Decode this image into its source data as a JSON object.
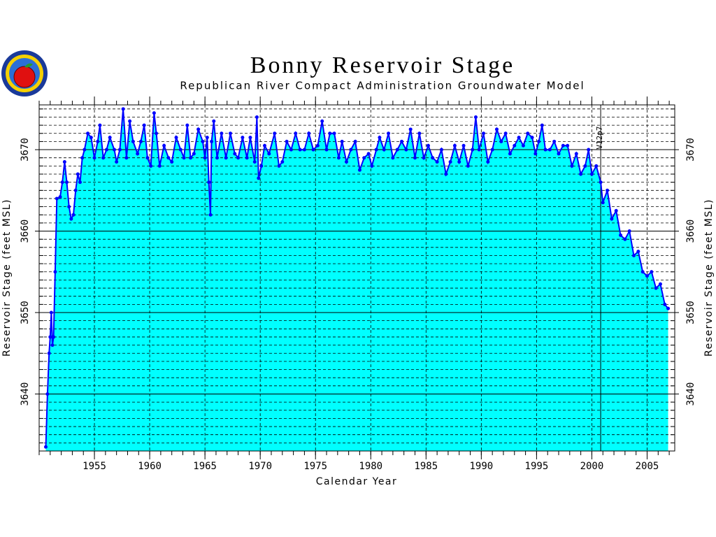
{
  "chart_data": {
    "type": "area-line",
    "title": "Bonny Reservoir Stage",
    "subtitle": "Republican River Compact Administration Groundwater Model",
    "xlabel": "Calendar Year",
    "ylabel": "Reservoir Stage (feet MSL)",
    "xlim": [
      1950,
      2007.5
    ],
    "ylim": [
      3633,
      3675.5
    ],
    "xticks": [
      1955,
      1960,
      1965,
      1970,
      1975,
      1980,
      1985,
      1990,
      1995,
      2000,
      2005
    ],
    "yticks": [
      3640,
      3650,
      3660,
      3670
    ],
    "grid": true,
    "color": "#0000ff",
    "fill_color": "#00ffff",
    "annotation": {
      "x": 2000.8,
      "text": "V12p7"
    },
    "x": [
      1950.6,
      1950.75,
      1950.9,
      1951.0,
      1951.1,
      1951.2,
      1951.3,
      1951.45,
      1951.6,
      1951.9,
      1952.1,
      1952.3,
      1952.5,
      1952.7,
      1952.9,
      1953.1,
      1953.3,
      1953.5,
      1953.7,
      1953.9,
      1954.1,
      1954.4,
      1954.7,
      1955.0,
      1955.3,
      1955.5,
      1955.8,
      1956.1,
      1956.4,
      1956.8,
      1957.0,
      1957.3,
      1957.6,
      1957.9,
      1958.2,
      1958.5,
      1958.9,
      1959.2,
      1959.5,
      1959.8,
      1960.1,
      1960.4,
      1960.6,
      1960.9,
      1961.3,
      1961.7,
      1962.0,
      1962.4,
      1962.8,
      1963.1,
      1963.4,
      1963.7,
      1964.0,
      1964.4,
      1964.8,
      1965.0,
      1965.2,
      1965.35,
      1965.5,
      1965.6,
      1965.8,
      1966.1,
      1966.5,
      1966.9,
      1967.3,
      1967.7,
      1968.0,
      1968.4,
      1968.8,
      1969.1,
      1969.5,
      1969.7,
      1969.85,
      1970.1,
      1970.4,
      1970.8,
      1971.3,
      1971.7,
      1972.0,
      1972.4,
      1972.8,
      1973.2,
      1973.6,
      1974.0,
      1974.4,
      1974.8,
      1975.2,
      1975.6,
      1976.0,
      1976.3,
      1976.7,
      1977.1,
      1977.4,
      1977.8,
      1978.2,
      1978.6,
      1979.0,
      1979.4,
      1979.8,
      1980.1,
      1980.5,
      1980.8,
      1981.2,
      1981.6,
      1982.0,
      1982.4,
      1982.8,
      1983.2,
      1983.6,
      1984.0,
      1984.4,
      1984.8,
      1985.2,
      1985.6,
      1986.0,
      1986.4,
      1986.8,
      1987.2,
      1987.6,
      1988.0,
      1988.4,
      1988.8,
      1989.2,
      1989.5,
      1989.8,
      1990.2,
      1990.6,
      1991.0,
      1991.4,
      1991.8,
      1992.2,
      1992.6,
      1993.0,
      1993.4,
      1993.8,
      1994.2,
      1994.6,
      1994.9,
      1995.2,
      1995.5,
      1995.8,
      1996.2,
      1996.6,
      1997.0,
      1997.4,
      1997.8,
      1998.2,
      1998.6,
      1999.0,
      1999.4,
      1999.7,
      2000.0,
      2000.4,
      2000.8,
      2001.0,
      2001.4,
      2001.8,
      2002.2,
      2002.6,
      2003.0,
      2003.4,
      2003.8,
      2004.2,
      2004.6,
      2005.0,
      2005.4,
      2005.8,
      2006.2,
      2006.6,
      2006.9
    ],
    "values": [
      3633.5,
      3640,
      3645,
      3647,
      3650,
      3646,
      3647,
      3655,
      3664,
      3664.2,
      3666,
      3668.5,
      3666,
      3663,
      3661.5,
      3662,
      3665,
      3667,
      3666,
      3669,
      3670,
      3672,
      3671.5,
      3669,
      3671,
      3673,
      3669,
      3670,
      3671.5,
      3670,
      3668.5,
      3670,
      3675,
      3669,
      3673.5,
      3671,
      3669.5,
      3671,
      3673,
      3669,
      3668,
      3674.5,
      3672,
      3668,
      3670.5,
      3669,
      3668.5,
      3671.5,
      3670,
      3669,
      3673,
      3669,
      3669.5,
      3672.5,
      3671,
      3669,
      3671.5,
      3666,
      3662,
      3671,
      3673.5,
      3669,
      3672,
      3669,
      3672,
      3669.5,
      3669,
      3671.5,
      3669,
      3671.5,
      3668.5,
      3674,
      3666.5,
      3668,
      3670.5,
      3669.5,
      3672,
      3668,
      3668.5,
      3671,
      3670,
      3672,
      3670,
      3670,
      3672,
      3670,
      3670.5,
      3673.5,
      3670,
      3672,
      3672,
      3669,
      3671,
      3668.5,
      3670,
      3671,
      3667.5,
      3669,
      3669.5,
      3668,
      3670,
      3671.5,
      3670,
      3672,
      3669,
      3670,
      3671,
      3670,
      3672.5,
      3669,
      3672,
      3669,
      3670.5,
      3669,
      3668.5,
      3670,
      3667,
      3668.5,
      3670.5,
      3668.5,
      3670.5,
      3668,
      3670,
      3674,
      3670,
      3672,
      3668.5,
      3670,
      3672.5,
      3671,
      3672,
      3669.5,
      3670.5,
      3671.5,
      3670.5,
      3672,
      3671.5,
      3669.5,
      3671,
      3673,
      3670,
      3670,
      3671,
      3669.5,
      3670.5,
      3670.5,
      3668,
      3669.5,
      3667,
      3668,
      3670,
      3667,
      3668,
      3666,
      3663.5,
      3665,
      3661.5,
      3662.5,
      3659.5,
      3659,
      3660,
      3657,
      3657.5,
      3655,
      3654.5,
      3655,
      3653,
      3653.5,
      3651,
      3650.5
    ]
  }
}
